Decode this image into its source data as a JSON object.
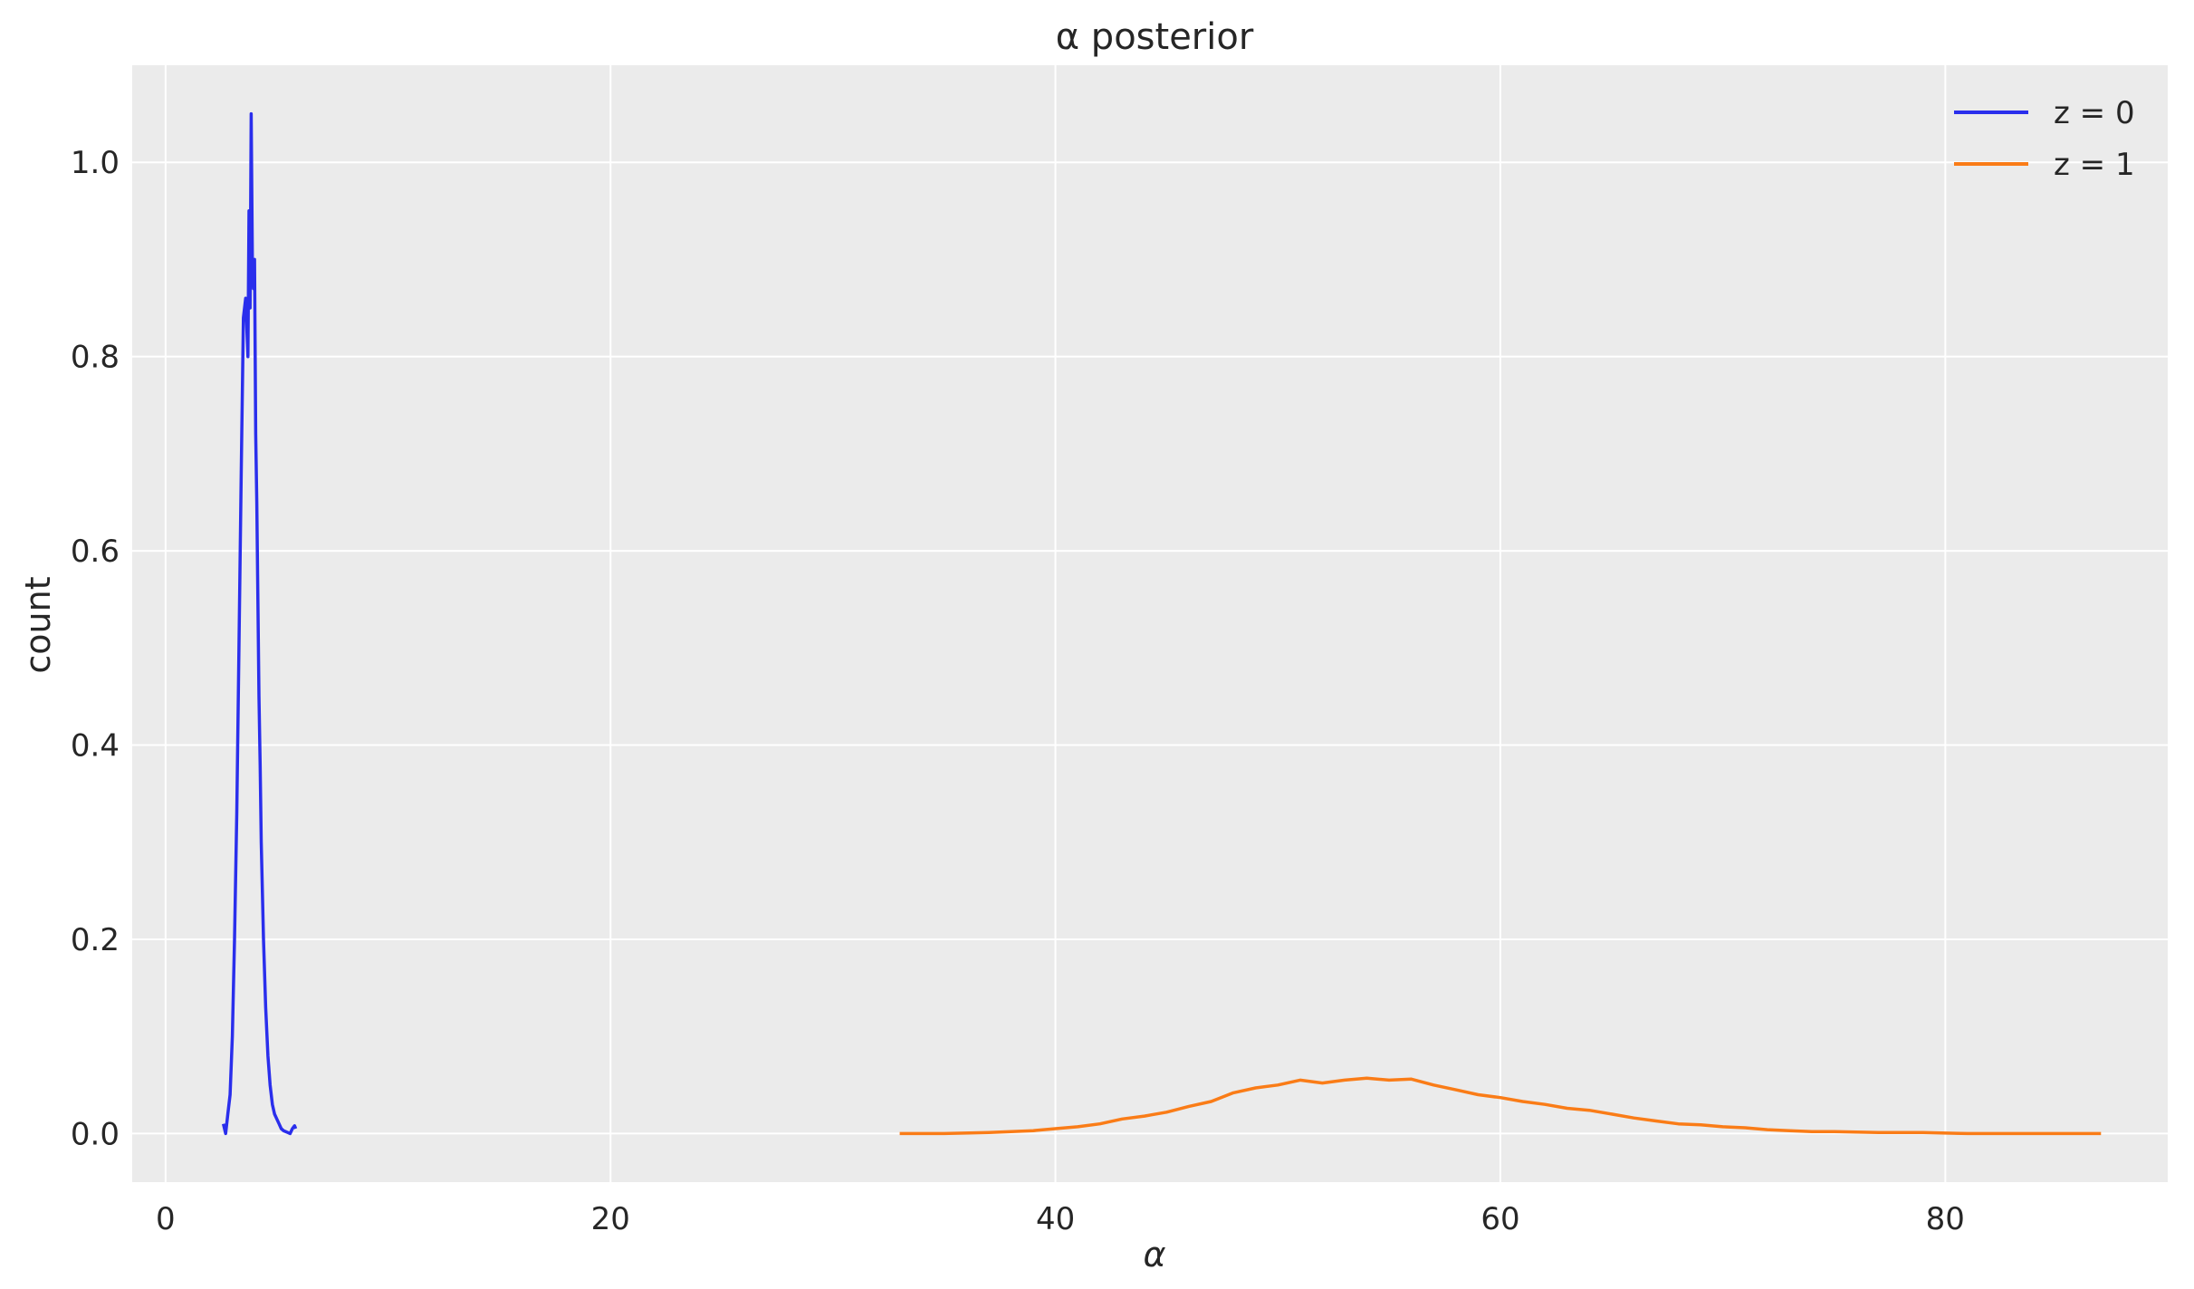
{
  "chart_data": {
    "type": "line",
    "title": "α posterior",
    "xlabel": "α",
    "ylabel": "count",
    "xlim": [
      -1.5,
      90
    ],
    "ylim": [
      -0.05,
      1.1
    ],
    "xticks": [
      0,
      20,
      40,
      60,
      80
    ],
    "yticks": [
      0.0,
      0.2,
      0.4,
      0.6,
      0.8,
      1.0
    ],
    "xtick_labels": [
      "0",
      "20",
      "40",
      "60",
      "80"
    ],
    "ytick_labels": [
      "0.0",
      "0.2",
      "0.4",
      "0.6",
      "0.8",
      "1.0"
    ],
    "grid": true,
    "legend_position": "top-right",
    "background": "#ebebeb",
    "series": [
      {
        "name": "z = 0",
        "color": "#2a2eec",
        "x": [
          2.6,
          2.7,
          2.8,
          2.9,
          3.0,
          3.1,
          3.2,
          3.3,
          3.4,
          3.5,
          3.6,
          3.7,
          3.75,
          3.8,
          3.85,
          3.9,
          3.95,
          4.0,
          4.05,
          4.1,
          4.15,
          4.2,
          4.25,
          4.3,
          4.4,
          4.5,
          4.6,
          4.7,
          4.8,
          4.9,
          5.0,
          5.1,
          5.2,
          5.3,
          5.4,
          5.5,
          5.6,
          5.7,
          5.8,
          5.85
        ],
        "y": [
          0.01,
          0.0,
          0.02,
          0.04,
          0.1,
          0.2,
          0.33,
          0.5,
          0.68,
          0.84,
          0.86,
          0.8,
          0.95,
          0.85,
          1.05,
          0.9,
          0.87,
          0.9,
          0.72,
          0.65,
          0.55,
          0.45,
          0.38,
          0.3,
          0.2,
          0.13,
          0.08,
          0.05,
          0.03,
          0.02,
          0.015,
          0.01,
          0.005,
          0.003,
          0.002,
          0.001,
          0.0,
          0.005,
          0.008,
          0.005
        ]
      },
      {
        "name": "z = 1",
        "color": "#fa7c17",
        "x": [
          33,
          35,
          37,
          39,
          40,
          41,
          42,
          43,
          44,
          45,
          46,
          47,
          48,
          49,
          50,
          51,
          52,
          53,
          54,
          55,
          56,
          57,
          58,
          59,
          60,
          61,
          62,
          63,
          64,
          65,
          66,
          67,
          68,
          69,
          70,
          71,
          72,
          73,
          74,
          75,
          77,
          79,
          81,
          83,
          85,
          87
        ],
        "y": [
          0.0,
          0.0,
          0.001,
          0.003,
          0.005,
          0.007,
          0.01,
          0.015,
          0.018,
          0.022,
          0.028,
          0.033,
          0.042,
          0.047,
          0.05,
          0.055,
          0.052,
          0.055,
          0.057,
          0.055,
          0.056,
          0.05,
          0.045,
          0.04,
          0.037,
          0.033,
          0.03,
          0.026,
          0.024,
          0.02,
          0.016,
          0.013,
          0.01,
          0.009,
          0.007,
          0.006,
          0.004,
          0.003,
          0.002,
          0.002,
          0.001,
          0.001,
          0.0,
          0.0,
          0.0,
          0.0
        ]
      }
    ]
  }
}
